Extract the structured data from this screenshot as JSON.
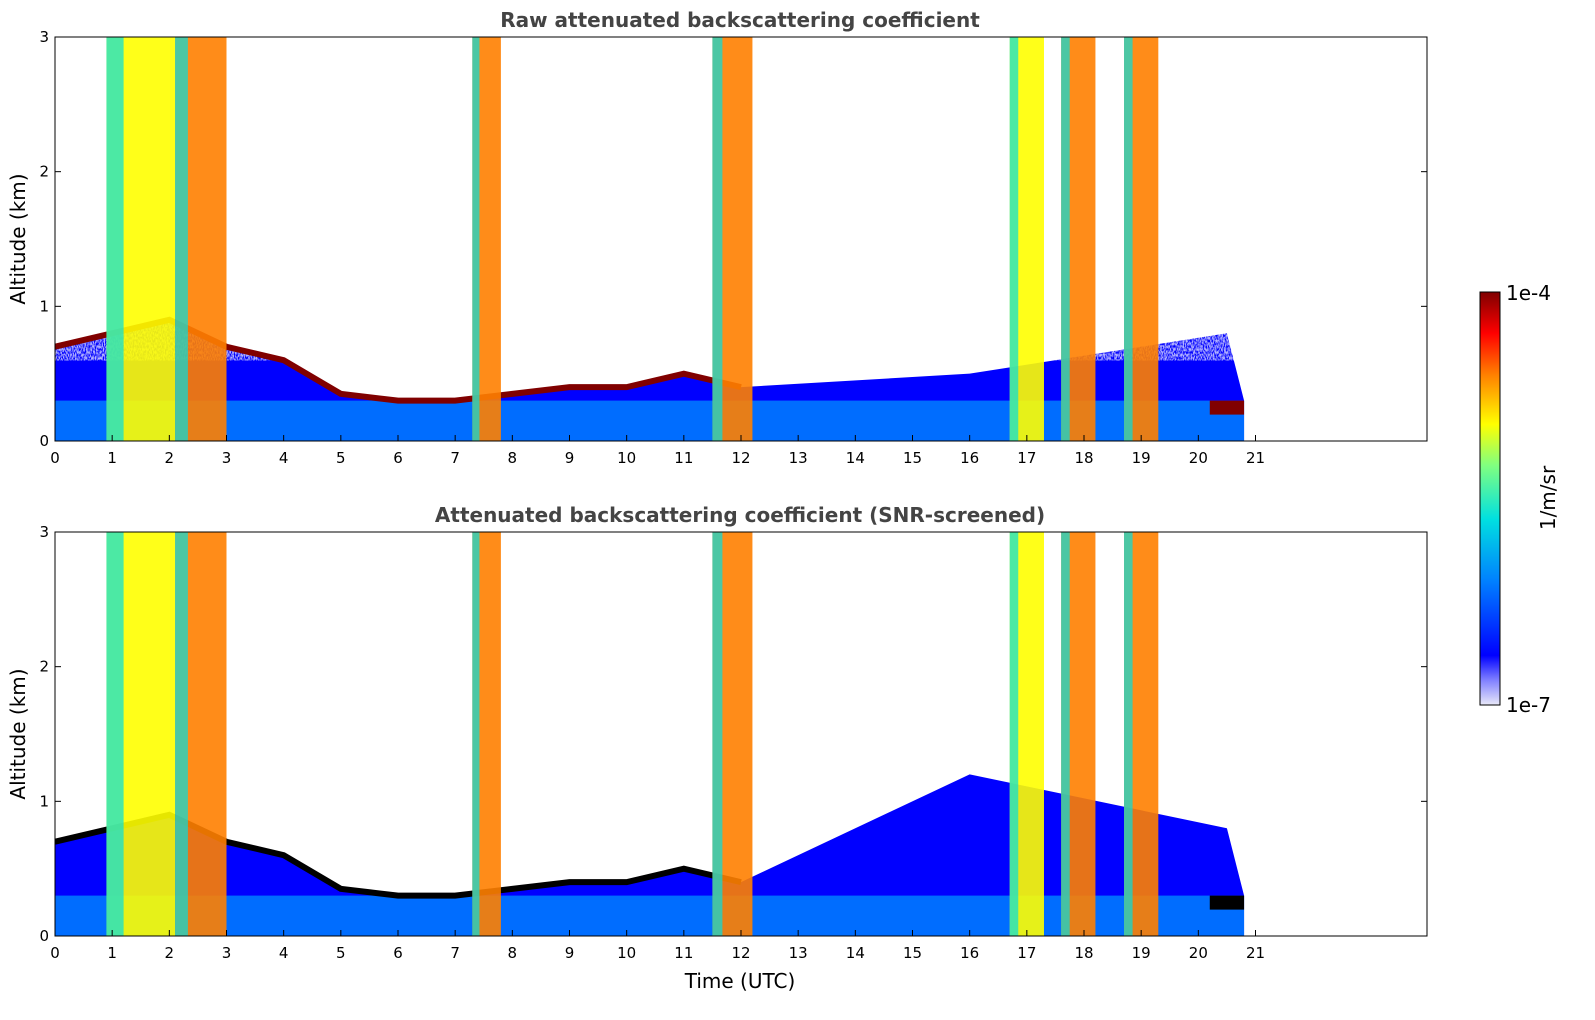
{
  "chart_data": [
    {
      "type": "heatmap",
      "title": "Raw attenuated backscattering coefficient",
      "xlabel": "",
      "ylabel": "Altitude (km)",
      "xlim": [
        0,
        24
      ],
      "ylim": [
        0,
        3
      ],
      "x_ticks": [
        "0",
        "1",
        "2",
        "3",
        "4",
        "5",
        "6",
        "7",
        "8",
        "9",
        "10",
        "11",
        "12",
        "13",
        "14",
        "15",
        "16",
        "17",
        "18",
        "19",
        "20",
        "21"
      ],
      "y_ticks": [
        "0",
        "1",
        "2",
        "3"
      ],
      "data_end_time": 20.8,
      "features": {
        "boundary_layer_top_km": [
          [
            0,
            0.7
          ],
          [
            2,
            0.9
          ],
          [
            3,
            0.7
          ],
          [
            4,
            0.6
          ],
          [
            5,
            0.35
          ],
          [
            6,
            0.3
          ],
          [
            7,
            0.3
          ],
          [
            8,
            0.35
          ],
          [
            9,
            0.4
          ],
          [
            10,
            0.4
          ],
          [
            11,
            0.5
          ],
          [
            12,
            0.4
          ]
        ],
        "precipitation_bands_utc": [
          [
            0.9,
            2.1
          ],
          [
            2.1,
            3.0
          ],
          [
            7.3,
            7.8
          ],
          [
            11.5,
            12.2
          ],
          [
            16.7,
            17.3
          ],
          [
            17.6,
            18.2
          ],
          [
            18.7,
            19.3
          ]
        ],
        "cloud_layer_km": [
          [
            20.2,
            0.25
          ],
          [
            20.8,
            0.2
          ]
        ]
      },
      "colorbar": {
        "label": "1/m/sr",
        "min_label": "1e-7",
        "max_label": "1e-4",
        "scale": "log"
      }
    },
    {
      "type": "heatmap",
      "title": "Attenuated backscattering coefficient (SNR-screened)",
      "xlabel": "Time (UTC)",
      "ylabel": "Altitude (km)",
      "xlim": [
        0,
        24
      ],
      "ylim": [
        0,
        3
      ],
      "x_ticks": [
        "0",
        "1",
        "2",
        "3",
        "4",
        "5",
        "6",
        "7",
        "8",
        "9",
        "10",
        "11",
        "12",
        "13",
        "14",
        "15",
        "16",
        "17",
        "18",
        "19",
        "20",
        "21"
      ],
      "y_ticks": [
        "0",
        "1",
        "2",
        "3"
      ],
      "data_end_time": 20.8,
      "screening": "low-SNR pixels removed (white)"
    }
  ],
  "colors": {
    "colormap": [
      "#e8e8f8",
      "#0000ff",
      "#0080ff",
      "#00e0e0",
      "#80ff80",
      "#ffff00",
      "#ff8000",
      "#ff0000",
      "#800000"
    ],
    "frame": "#000000",
    "title": "#444444"
  }
}
